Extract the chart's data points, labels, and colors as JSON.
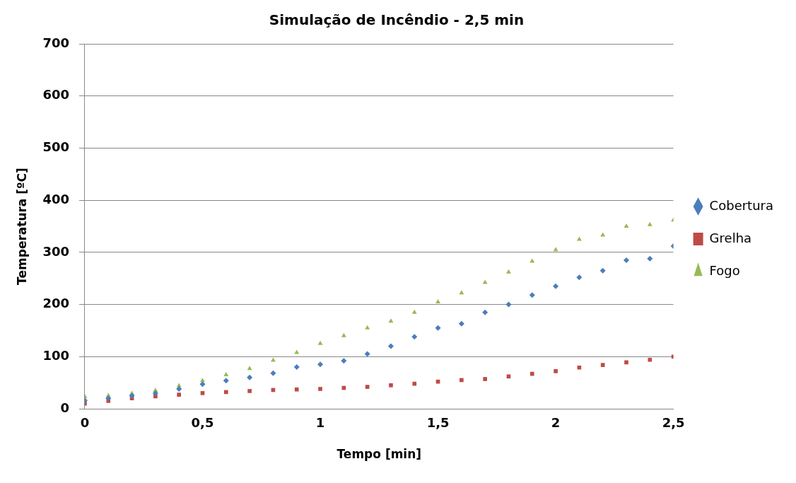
{
  "chart_data": {
    "type": "scatter",
    "title": "Simulação de Incêndio - 2,5 min",
    "xlabel": "Tempo [min]",
    "ylabel": "Temperatura [ºC]",
    "x": [
      0,
      0.1,
      0.2,
      0.3,
      0.4,
      0.5,
      0.6,
      0.7,
      0.8,
      0.9,
      1,
      1.1,
      1.2,
      1.3,
      1.4,
      1.5,
      1.6,
      1.7,
      1.8,
      1.9,
      2,
      2.1,
      2.2,
      2.3,
      2.4,
      2.5
    ],
    "series": [
      {
        "name": "Cobertura",
        "color": "#4a7ebb",
        "marker": "diamond",
        "values": [
          16,
          20,
          25,
          30,
          38,
          47,
          54,
          60,
          68,
          80,
          85,
          92,
          105,
          120,
          138,
          155,
          163,
          185,
          200,
          218,
          235,
          252,
          265,
          285,
          288,
          312
        ]
      },
      {
        "name": "Grelha",
        "color": "#be4b48",
        "marker": "square",
        "values": [
          10,
          15,
          20,
          24,
          27,
          30,
          32,
          34,
          36,
          37,
          38,
          40,
          42,
          45,
          48,
          52,
          55,
          57,
          62,
          67,
          72,
          79,
          84,
          89,
          94,
          100
        ]
      },
      {
        "name": "Fogo",
        "color": "#98b954",
        "marker": "triangle",
        "values": [
          23,
          25,
          29,
          35,
          44,
          54,
          65,
          77,
          93,
          108,
          125,
          140,
          155,
          168,
          185,
          205,
          222,
          242,
          262,
          283,
          305,
          325,
          333,
          350,
          353,
          362
        ]
      }
    ],
    "xlim": [
      0,
      2.5
    ],
    "xticks": [
      0,
      {
        "value": 0.5,
        "label": "0,5"
      },
      1,
      {
        "value": 1.5,
        "label": "1,5"
      },
      2,
      {
        "value": 2.5,
        "label": "2,5"
      }
    ],
    "ylim": [
      0,
      700
    ],
    "yticks": [
      0,
      100,
      200,
      300,
      400,
      500,
      600,
      700
    ],
    "grid": "y",
    "legend": "right"
  }
}
